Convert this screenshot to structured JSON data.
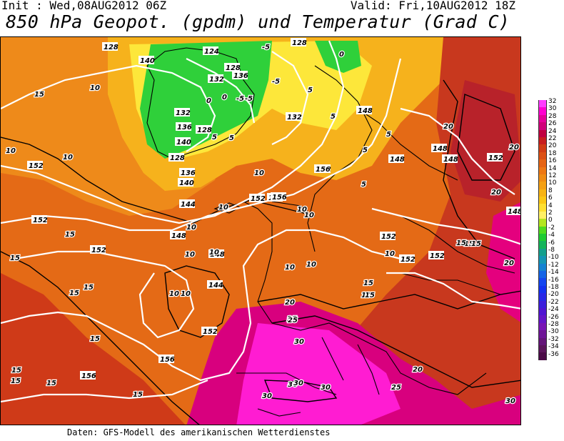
{
  "header": {
    "init": "Init : Wed,08AUG2012 06Z",
    "valid": "Valid: Fri,10AUG2012 18Z",
    "title": "850 hPa Geopot. (gpdm) und Temperatur (Grad C)"
  },
  "footer": {
    "source": "Daten: GFS-Modell des amerikanischen Wetterdienstes"
  },
  "legend": {
    "labels": [
      "32",
      "30",
      "28",
      "26",
      "24",
      "22",
      "20",
      "18",
      "16",
      "14",
      "12",
      "10",
      "8",
      "6",
      "4",
      "2",
      "0",
      "-2",
      "-4",
      "-6",
      "-8",
      "-10",
      "-12",
      "-14",
      "-16",
      "-18",
      "-20",
      "-22",
      "-24",
      "-26",
      "-28",
      "-30",
      "-32",
      "-34",
      "-36"
    ],
    "colors": [
      "#ff3cff",
      "#ff00d0",
      "#e6009a",
      "#d0007a",
      "#c00040",
      "#c81e1e",
      "#d23c14",
      "#dc5014",
      "#e66414",
      "#ee7814",
      "#f08c14",
      "#f4a014",
      "#f8b414",
      "#fcc814",
      "#ffe030",
      "#fff064",
      "#b4e61e",
      "#50dc1e",
      "#1ecc32",
      "#14b45a",
      "#14a08c",
      "#1496b4",
      "#1482d2",
      "#1464e6",
      "#1446f0",
      "#1432f0",
      "#2828e6",
      "#3c1edc",
      "#5014d2",
      "#6414c8",
      "#7814b4",
      "#6e1496",
      "#641478",
      "#5a145a",
      "#4a0a46"
    ]
  },
  "map": {
    "isohypse_labels": [
      {
        "text": "140",
        "k": "w"
      },
      {
        "text": "124",
        "k": "w"
      },
      {
        "text": "128",
        "k": "w"
      },
      {
        "text": "132",
        "k": "w"
      },
      {
        "text": "128",
        "k": "w"
      },
      {
        "text": "136",
        "k": "w"
      },
      {
        "text": "132",
        "k": "w"
      },
      {
        "text": "128",
        "k": "w"
      },
      {
        "text": "132",
        "k": "w"
      },
      {
        "text": "136",
        "k": "w"
      },
      {
        "text": "140",
        "k": "w"
      },
      {
        "text": "128",
        "k": "w"
      },
      {
        "text": "136",
        "k": "w"
      },
      {
        "text": "140",
        "k": "w"
      },
      {
        "text": "144",
        "k": "w"
      },
      {
        "text": "148",
        "k": "w"
      },
      {
        "text": "148",
        "k": "w"
      },
      {
        "text": "144",
        "k": "w"
      },
      {
        "text": "152",
        "k": "w"
      },
      {
        "text": "152",
        "k": "w"
      },
      {
        "text": "152",
        "k": "w"
      },
      {
        "text": "156",
        "k": "w"
      },
      {
        "text": "156",
        "k": "w"
      },
      {
        "text": "156",
        "k": "w"
      },
      {
        "text": "152",
        "k": "w"
      },
      {
        "text": "148",
        "k": "w"
      },
      {
        "text": "148",
        "k": "w"
      },
      {
        "text": "148",
        "k": "w"
      },
      {
        "text": "152",
        "k": "w"
      },
      {
        "text": "148",
        "k": "w"
      },
      {
        "text": "152",
        "k": "w"
      },
      {
        "text": "156",
        "k": "w"
      },
      {
        "text": "152",
        "k": "w"
      },
      {
        "text": "152",
        "k": "w"
      },
      {
        "text": "152",
        "k": "w"
      },
      {
        "text": "148",
        "k": "w"
      },
      {
        "text": "152",
        "k": "w"
      },
      {
        "text": "128",
        "k": "w"
      },
      {
        "text": "152",
        "k": "w"
      }
    ],
    "temp_labels": [
      {
        "text": "-5"
      },
      {
        "text": "-5"
      },
      {
        "text": "-5"
      },
      {
        "text": "-5"
      },
      {
        "text": "0"
      },
      {
        "text": "0"
      },
      {
        "text": "5"
      },
      {
        "text": "5"
      },
      {
        "text": "5"
      },
      {
        "text": "5"
      },
      {
        "text": "5"
      },
      {
        "text": "5"
      },
      {
        "text": "10"
      },
      {
        "text": "10"
      },
      {
        "text": "10"
      },
      {
        "text": "10"
      },
      {
        "text": "10"
      },
      {
        "text": "10"
      },
      {
        "text": "10"
      },
      {
        "text": "10"
      },
      {
        "text": "10"
      },
      {
        "text": "10"
      },
      {
        "text": "10"
      },
      {
        "text": "10"
      },
      {
        "text": "10"
      },
      {
        "text": "10"
      },
      {
        "text": "10"
      },
      {
        "text": "15"
      },
      {
        "text": "15"
      },
      {
        "text": "15"
      },
      {
        "text": "15"
      },
      {
        "text": "15"
      },
      {
        "text": "15"
      },
      {
        "text": "15"
      },
      {
        "text": "15"
      },
      {
        "text": "15"
      },
      {
        "text": "15"
      },
      {
        "text": "15"
      },
      {
        "text": "15"
      },
      {
        "text": "15"
      },
      {
        "text": "15"
      },
      {
        "text": "20"
      },
      {
        "text": "20"
      },
      {
        "text": "20"
      },
      {
        "text": "20"
      },
      {
        "text": "20"
      },
      {
        "text": "20"
      },
      {
        "text": "25"
      },
      {
        "text": "25"
      },
      {
        "text": "25"
      },
      {
        "text": "30"
      },
      {
        "text": "30"
      },
      {
        "text": "30"
      },
      {
        "text": "30"
      },
      {
        "text": "30"
      },
      {
        "text": "30"
      },
      {
        "text": "10"
      },
      {
        "text": "5"
      },
      {
        "text": "0"
      },
      {
        "text": "15"
      }
    ]
  }
}
